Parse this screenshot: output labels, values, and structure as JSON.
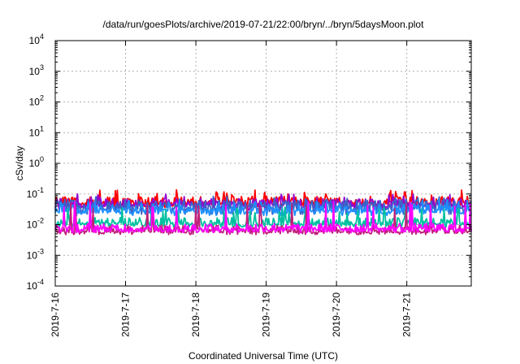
{
  "chart_data": {
    "type": "line",
    "title": "/data/run/goesPlots/archive/2019-07-21/22:00/bryn/../bryn/5daysMoon.plot",
    "xlabel": "Coordinated Universal Time (UTC)",
    "ylabel": "cSv/day",
    "yscale": "log",
    "ylim": [
      0.0001,
      10000
    ],
    "y_ticks": [
      {
        "value": 0.0001,
        "base": "10",
        "exp": "-4"
      },
      {
        "value": 0.001,
        "base": "10",
        "exp": "-3"
      },
      {
        "value": 0.01,
        "base": "10",
        "exp": "-2"
      },
      {
        "value": 0.1,
        "base": "10",
        "exp": "-1"
      },
      {
        "value": 1,
        "base": "10",
        "exp": "0"
      },
      {
        "value": 10,
        "base": "10",
        "exp": "1"
      },
      {
        "value": 100,
        "base": "10",
        "exp": "2"
      },
      {
        "value": 1000,
        "base": "10",
        "exp": "3"
      },
      {
        "value": 10000,
        "base": "10",
        "exp": "4"
      }
    ],
    "x_ticks": [
      "2019-7-16",
      "2019-7-17",
      "2019-7-18",
      "2019-7-19",
      "2019-7-20",
      "2019-7-21"
    ],
    "xlim_days": [
      "2019-07-16",
      "2019-07-21T22:00"
    ],
    "grid": true,
    "legend": "none",
    "series": [
      {
        "color": "#ff0000",
        "level": 0.06,
        "low": 0.036,
        "high": 0.11,
        "dip_level": 0.045
      },
      {
        "color": "#9400d3",
        "level": 0.05,
        "low": 0.03,
        "high": 0.08,
        "dip_level": 0.04
      },
      {
        "color": "#3a63c8",
        "level": 0.045,
        "low": 0.022,
        "high": 0.07,
        "dip_level": 0.03
      },
      {
        "color": "#1e90ff",
        "level": 0.032,
        "low": 0.02,
        "high": 0.055,
        "dip_level": 0.026
      },
      {
        "color": "#00c0a0",
        "level": 0.012,
        "low": 0.01,
        "high": 0.03,
        "dip_level": 0.01
      },
      {
        "color": "#c0207a",
        "level": 0.0068,
        "low": 0.0055,
        "high": 0.04,
        "dip_level": 0.0062
      },
      {
        "color": "#ff00ff",
        "level": 0.0078,
        "low": 0.006,
        "high": 0.045,
        "dip_level": 0.0068
      }
    ]
  }
}
